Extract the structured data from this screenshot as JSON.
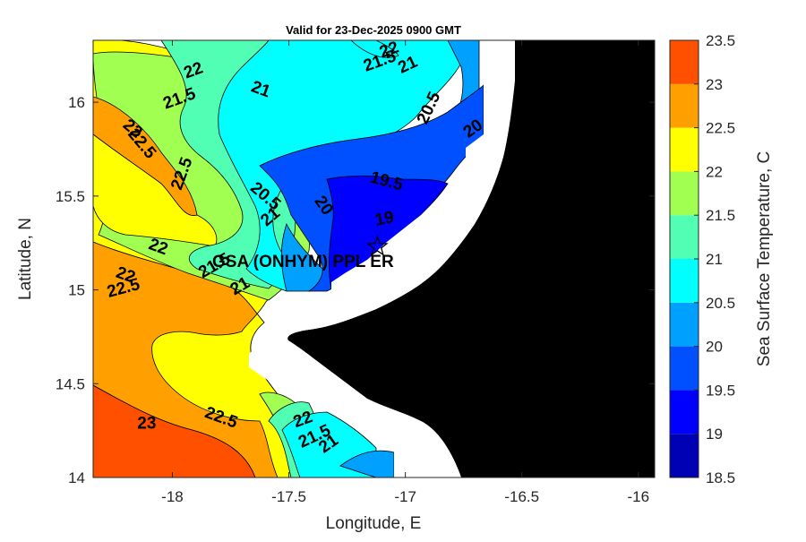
{
  "chart_data": {
    "type": "heatmap",
    "title": "Valid for 23-Dec-2025 0900 GMT",
    "xlabel": "Longitude, E",
    "ylabel": "Latitude, N",
    "xlim": [
      -18.34,
      -15.93
    ],
    "ylim": [
      14.0,
      16.33
    ],
    "xticks": [
      "-18",
      "-17.5",
      "-17",
      "-16.5",
      "-16"
    ],
    "xtick_values": [
      -18,
      -17.5,
      -17,
      -16.5,
      -16
    ],
    "yticks": [
      "14",
      "14.5",
      "15",
      "15.5",
      "16"
    ],
    "ytick_values": [
      14,
      14.5,
      15,
      15.5,
      16
    ],
    "colorbar": {
      "label": "Sea Surface Temperature, C",
      "range": [
        18.5,
        23.5
      ],
      "step": 0.5,
      "ticks": [
        "18.5",
        "19",
        "19.5",
        "20",
        "20.5",
        "21",
        "21.5",
        "22",
        "22.5",
        "23",
        "23.5"
      ],
      "colors": [
        "#0000b4",
        "#0000ff",
        "#0050ff",
        "#00a0ff",
        "#00ffff",
        "#50ffb4",
        "#a0ff50",
        "#ffff00",
        "#ffa000",
        "#ff5000"
      ]
    },
    "station": {
      "name": "GSA (ONHYM) PPL ER",
      "lon": -17.12,
      "lat": 15.23,
      "marker": "star"
    },
    "contour_labels": [
      {
        "text": "22",
        "lon": -17.91,
        "lat": 16.17
      },
      {
        "text": "21.5",
        "lon": -17.97,
        "lat": 16.02
      },
      {
        "text": "21",
        "lon": -17.62,
        "lat": 16.07
      },
      {
        "text": "22",
        "lon": -18.17,
        "lat": 15.86
      },
      {
        "text": "22.5",
        "lon": -18.13,
        "lat": 15.78
      },
      {
        "text": "22.5",
        "lon": -17.96,
        "lat": 15.62
      },
      {
        "text": "22",
        "lon": -18.06,
        "lat": 15.23
      },
      {
        "text": "22",
        "lon": -18.2,
        "lat": 15.08
      },
      {
        "text": "22.5",
        "lon": -18.21,
        "lat": 15.01
      },
      {
        "text": "20.5",
        "lon": -17.6,
        "lat": 15.5
      },
      {
        "text": "21",
        "lon": -17.58,
        "lat": 15.39
      },
      {
        "text": "21.5",
        "lon": -17.82,
        "lat": 15.13
      },
      {
        "text": "21",
        "lon": -17.71,
        "lat": 15.02
      },
      {
        "text": "20",
        "lon": -17.35,
        "lat": 15.45
      },
      {
        "text": "19.5",
        "lon": -17.08,
        "lat": 15.58
      },
      {
        "text": "19",
        "lon": -17.09,
        "lat": 15.38
      },
      {
        "text": "22",
        "lon": -17.07,
        "lat": 16.28
      },
      {
        "text": "21.5",
        "lon": -17.11,
        "lat": 16.22
      },
      {
        "text": "21",
        "lon": -16.99,
        "lat": 16.2
      },
      {
        "text": "20.5",
        "lon": -16.9,
        "lat": 15.97
      },
      {
        "text": "20",
        "lon": -16.71,
        "lat": 15.86
      },
      {
        "text": "23",
        "lon": -18.11,
        "lat": 14.29
      },
      {
        "text": "22.5",
        "lon": -17.79,
        "lat": 14.32
      },
      {
        "text": "22",
        "lon": -17.44,
        "lat": 14.31
      },
      {
        "text": "21.5",
        "lon": -17.39,
        "lat": 14.22
      },
      {
        "text": "21",
        "lon": -17.33,
        "lat": 14.18
      }
    ]
  }
}
